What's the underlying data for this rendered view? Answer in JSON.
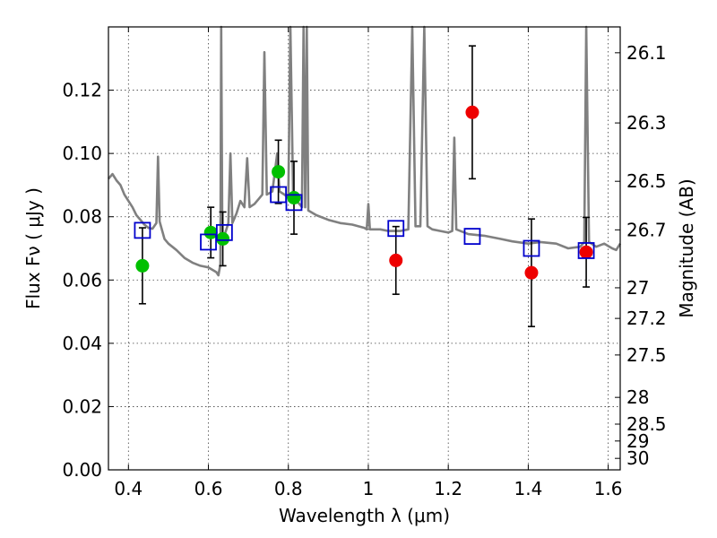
{
  "chart_data": {
    "type": "scatter",
    "xlabel": "Wavelength  λ (μm)",
    "ylabel": "Flux  Fν  ( μJy )",
    "y2label": "Magnitude (AB)",
    "xlim": [
      0.35,
      1.63
    ],
    "ylim": [
      0.0,
      0.14
    ],
    "x_ticks": [
      0.4,
      0.6,
      0.8,
      1.0,
      1.2,
      1.4,
      1.6
    ],
    "x_tick_labels": [
      "0.4",
      "0.6",
      "0.8",
      "1",
      "1.2",
      "1.4",
      "1.6"
    ],
    "y_ticks": [
      0.0,
      0.02,
      0.04,
      0.06,
      0.08,
      0.1,
      0.12
    ],
    "y_tick_labels": [
      "0.00",
      "0.02",
      "0.04",
      "0.06",
      "0.08",
      "0.10",
      "0.12"
    ],
    "y2_ticks": [
      "26.1",
      "26.3",
      "26.5",
      "26.7",
      "27",
      "27.2",
      "27.5",
      "28",
      "28.5",
      "29",
      "30"
    ],
    "grid": true,
    "colors": {
      "model": "#808080",
      "green_points": "#00c000",
      "red_points": "#ee0000",
      "model_boxes": "#0000cc",
      "error_bars": "#000000"
    },
    "series": [
      {
        "marker": "circle",
        "color": "#00c000",
        "points": [
          {
            "x": 0.435,
            "y": 0.0645,
            "err": 0.012
          },
          {
            "x": 0.606,
            "y": 0.075,
            "err": 0.008
          },
          {
            "x": 0.636,
            "y": 0.073,
            "err": 0.0085
          },
          {
            "x": 0.775,
            "y": 0.0942,
            "err": 0.01
          },
          {
            "x": 0.814,
            "y": 0.086,
            "err": 0.0115
          }
        ]
      },
      {
        "marker": "circle",
        "color": "#ee0000",
        "points": [
          {
            "x": 1.069,
            "y": 0.0662,
            "err": 0.0107
          },
          {
            "x": 1.26,
            "y": 0.113,
            "err": 0.021
          },
          {
            "x": 1.408,
            "y": 0.0623,
            "err": 0.017
          },
          {
            "x": 1.545,
            "y": 0.0688,
            "err": 0.011
          }
        ]
      },
      {
        "marker": "square",
        "color": "#0000cc",
        "points": [
          {
            "x": 0.435,
            "y": 0.0757
          },
          {
            "x": 0.6,
            "y": 0.072
          },
          {
            "x": 0.64,
            "y": 0.075
          },
          {
            "x": 0.775,
            "y": 0.087
          },
          {
            "x": 0.814,
            "y": 0.0845
          },
          {
            "x": 1.069,
            "y": 0.0763
          },
          {
            "x": 1.26,
            "y": 0.0738
          },
          {
            "x": 1.408,
            "y": 0.07
          },
          {
            "x": 1.545,
            "y": 0.0693
          }
        ]
      }
    ],
    "model_spectrum": [
      [
        0.35,
        0.092
      ],
      [
        0.36,
        0.0935
      ],
      [
        0.37,
        0.0915
      ],
      [
        0.38,
        0.09
      ],
      [
        0.39,
        0.087
      ],
      [
        0.4,
        0.085
      ],
      [
        0.41,
        0.083
      ],
      [
        0.42,
        0.0805
      ],
      [
        0.43,
        0.079
      ],
      [
        0.44,
        0.0775
      ],
      [
        0.45,
        0.0765
      ],
      [
        0.46,
        0.0762
      ],
      [
        0.47,
        0.078
      ],
      [
        0.474,
        0.099
      ],
      [
        0.478,
        0.0785
      ],
      [
        0.49,
        0.073
      ],
      [
        0.5,
        0.0715
      ],
      [
        0.52,
        0.0695
      ],
      [
        0.54,
        0.067
      ],
      [
        0.56,
        0.0655
      ],
      [
        0.58,
        0.0645
      ],
      [
        0.6,
        0.064
      ],
      [
        0.62,
        0.0625
      ],
      [
        0.625,
        0.0615
      ],
      [
        0.63,
        0.065
      ],
      [
        0.632,
        0.14
      ],
      [
        0.635,
        0.072
      ],
      [
        0.65,
        0.078
      ],
      [
        0.655,
        0.1
      ],
      [
        0.66,
        0.078
      ],
      [
        0.67,
        0.081
      ],
      [
        0.68,
        0.085
      ],
      [
        0.69,
        0.083
      ],
      [
        0.697,
        0.0985
      ],
      [
        0.703,
        0.083
      ],
      [
        0.715,
        0.084
      ],
      [
        0.725,
        0.0855
      ],
      [
        0.735,
        0.087
      ],
      [
        0.74,
        0.132
      ],
      [
        0.746,
        0.087
      ],
      [
        0.76,
        0.088
      ],
      [
        0.772,
        0.1
      ],
      [
        0.778,
        0.088
      ],
      [
        0.79,
        0.087
      ],
      [
        0.8,
        0.086
      ],
      [
        0.805,
        0.14
      ],
      [
        0.812,
        0.086
      ],
      [
        0.82,
        0.085
      ],
      [
        0.828,
        0.084
      ],
      [
        0.834,
        0.083
      ],
      [
        0.838,
        0.14
      ],
      [
        0.842,
        0.083
      ],
      [
        0.846,
        0.14
      ],
      [
        0.85,
        0.082
      ],
      [
        0.87,
        0.0805
      ],
      [
        0.9,
        0.079
      ],
      [
        0.93,
        0.078
      ],
      [
        0.96,
        0.0775
      ],
      [
        0.99,
        0.0765
      ],
      [
        0.996,
        0.076
      ],
      [
        1.0,
        0.084
      ],
      [
        1.004,
        0.076
      ],
      [
        1.03,
        0.076
      ],
      [
        1.05,
        0.0755
      ],
      [
        1.08,
        0.0755
      ],
      [
        1.1,
        0.076
      ],
      [
        1.11,
        0.14
      ],
      [
        1.118,
        0.077
      ],
      [
        1.13,
        0.077
      ],
      [
        1.14,
        0.14
      ],
      [
        1.148,
        0.077
      ],
      [
        1.16,
        0.076
      ],
      [
        1.18,
        0.0755
      ],
      [
        1.2,
        0.075
      ],
      [
        1.21,
        0.0755
      ],
      [
        1.215,
        0.105
      ],
      [
        1.22,
        0.076
      ],
      [
        1.25,
        0.0745
      ],
      [
        1.29,
        0.074
      ],
      [
        1.33,
        0.073
      ],
      [
        1.36,
        0.0722
      ],
      [
        1.4,
        0.0715
      ],
      [
        1.43,
        0.072
      ],
      [
        1.47,
        0.0715
      ],
      [
        1.5,
        0.07
      ],
      [
        1.53,
        0.0705
      ],
      [
        1.54,
        0.072
      ],
      [
        1.545,
        0.14
      ],
      [
        1.552,
        0.072
      ],
      [
        1.57,
        0.0705
      ],
      [
        1.59,
        0.0715
      ],
      [
        1.61,
        0.07
      ],
      [
        1.62,
        0.0695
      ],
      [
        1.63,
        0.0715
      ]
    ]
  }
}
